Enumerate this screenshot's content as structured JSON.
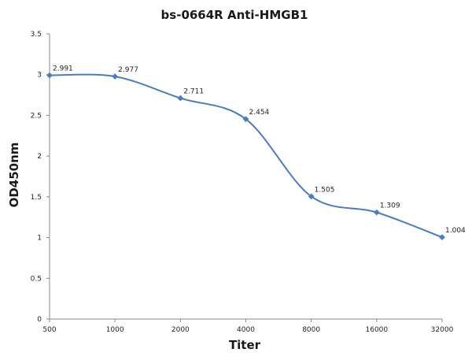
{
  "chart_data": {
    "type": "line",
    "title": "bs-0664R Anti-HMGB1",
    "xlabel": "Titer",
    "ylabel": "OD450nm",
    "categories": [
      "500",
      "1000",
      "2000",
      "4000",
      "8000",
      "16000",
      "32000"
    ],
    "y_ticks": [
      "0",
      "0.5",
      "1",
      "1.5",
      "2",
      "2.5",
      "3",
      "3.5"
    ],
    "ylim": [
      0,
      3.5
    ],
    "grid": false,
    "legend": "none",
    "series": [
      {
        "values": [
          2.991,
          2.977,
          2.711,
          2.454,
          1.505,
          1.309,
          1.004
        ],
        "labels": [
          "2.991",
          "2.977",
          "2.711",
          "2.454",
          "1.505",
          "1.309",
          "1.004"
        ],
        "color": "#4a7ebb",
        "marker": "diamond",
        "smooth": true
      }
    ]
  }
}
